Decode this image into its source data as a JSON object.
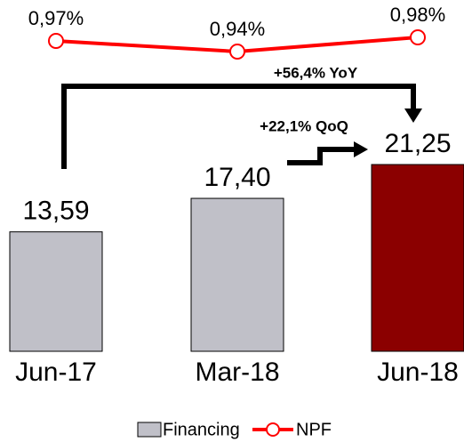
{
  "chart_data": {
    "type": "bar",
    "categories": [
      "Jun-17",
      "Mar-18",
      "Jun-18"
    ],
    "series": [
      {
        "name": "Financing",
        "type": "bar",
        "color": "#c0c0c8",
        "colors": [
          "#c0c0c8",
          "#c0c0c8",
          "#8b0000"
        ],
        "values": [
          13.59,
          17.4,
          21.25
        ],
        "value_labels": [
          "13,59",
          "17,40",
          "21,25"
        ]
      },
      {
        "name": "NPF",
        "type": "line",
        "color": "#ff0000",
        "values": [
          0.97,
          0.94,
          0.98
        ],
        "value_labels": [
          "0,97%",
          "0,94%",
          "0,98%"
        ]
      }
    ],
    "annotations": [
      "+56,4% YoY",
      "+22,1% QoQ"
    ]
  }
}
